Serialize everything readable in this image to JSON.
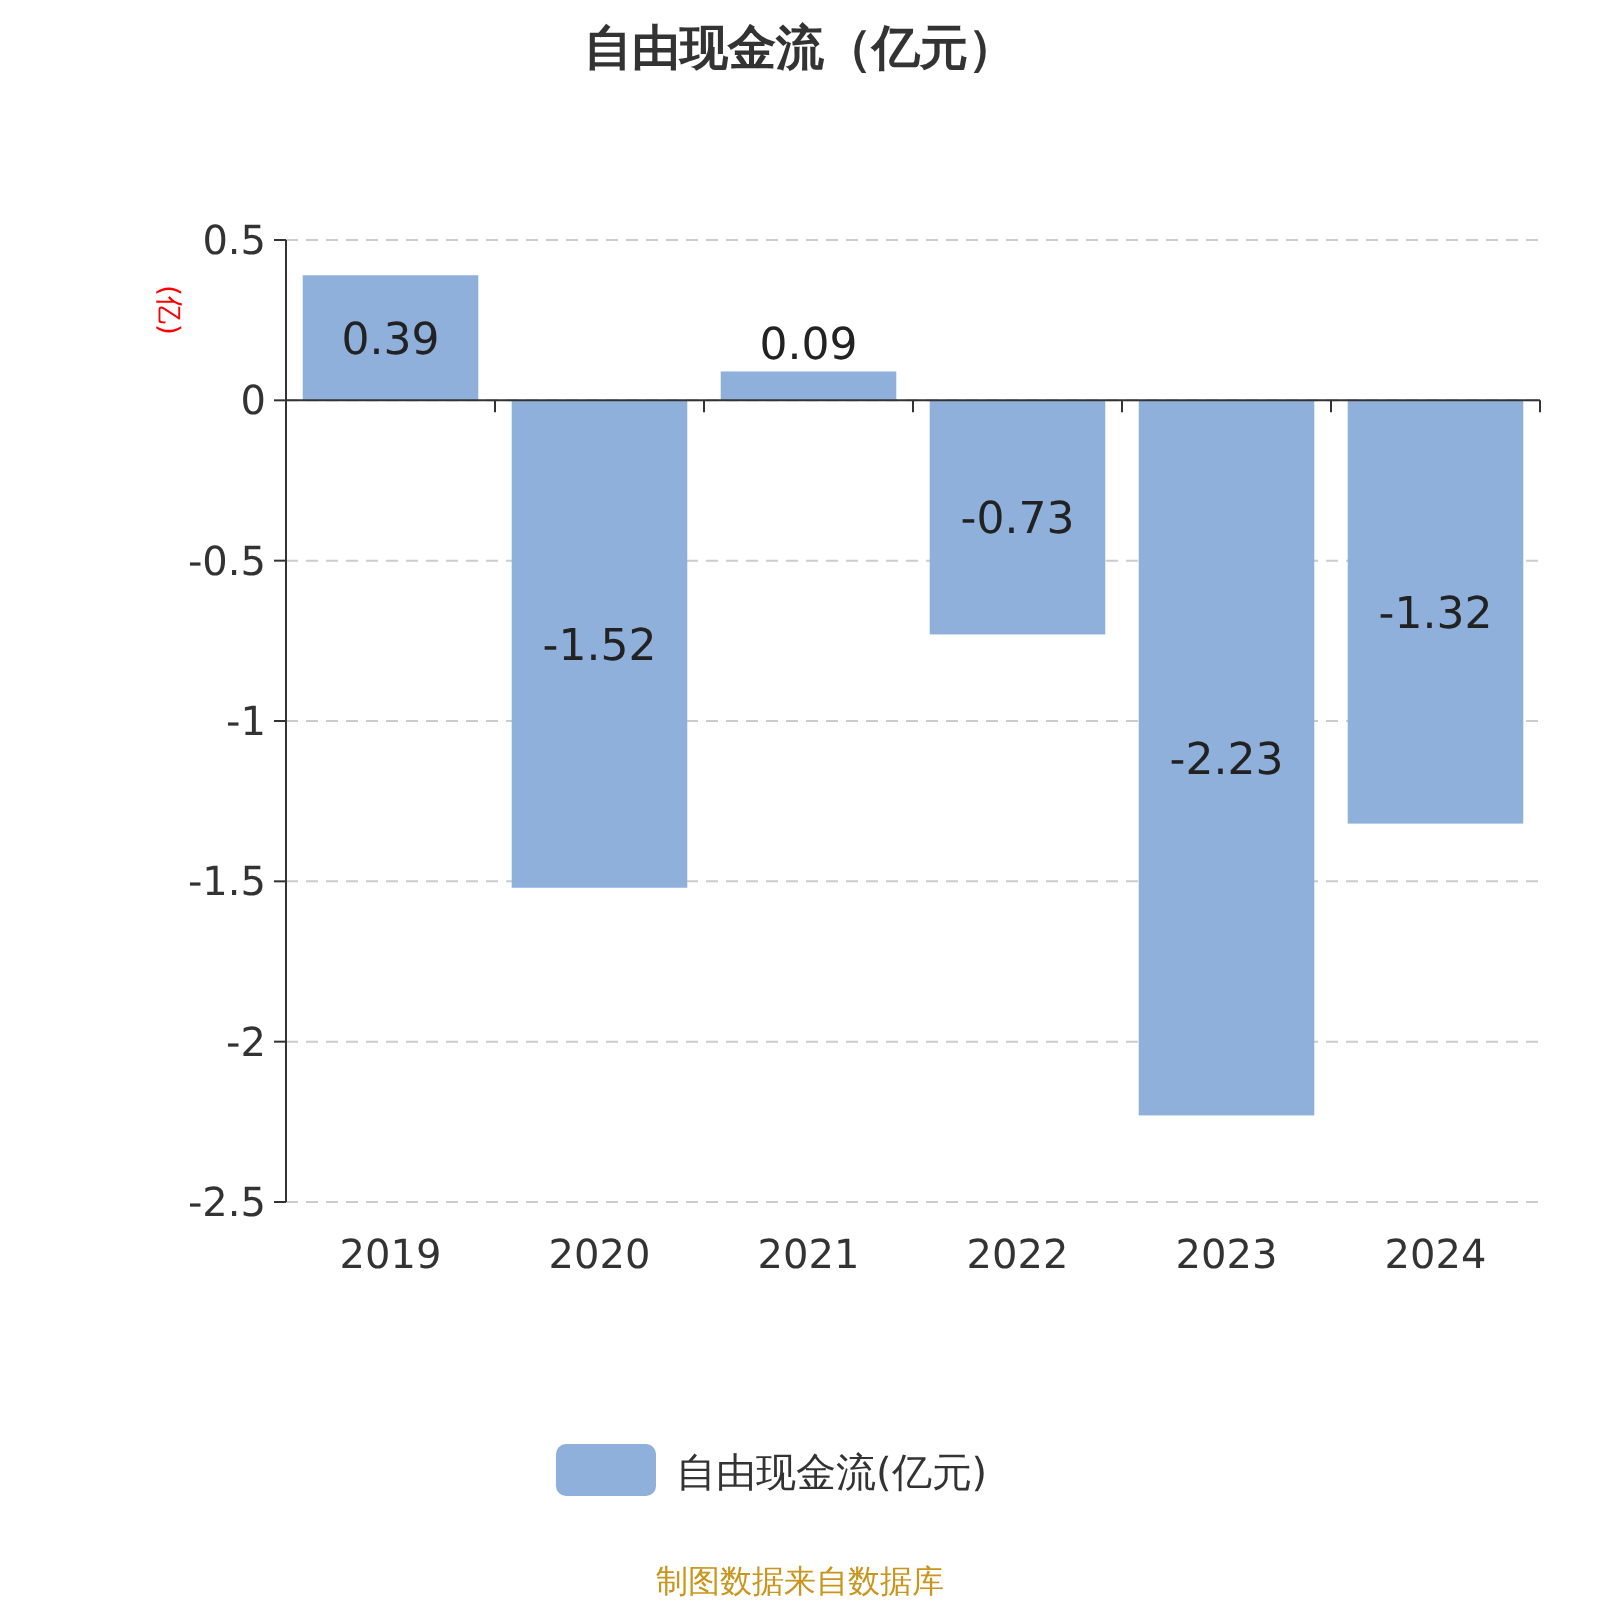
{
  "chart_data": {
    "type": "bar",
    "title": "自由现金流（亿元）",
    "ylabel": "(亿)",
    "categories": [
      "2019",
      "2020",
      "2021",
      "2022",
      "2023",
      "2024"
    ],
    "series": [
      {
        "name": "自由现金流(亿元)",
        "color": "#8eb0db",
        "values": [
          0.39,
          -1.52,
          0.09,
          -0.73,
          -2.23,
          -1.32
        ]
      }
    ],
    "ylim": [
      -2.5,
      0.5
    ],
    "yticks": [
      0.5,
      0,
      -0.5,
      -1,
      -1.5,
      -2,
      -2.5
    ],
    "grid": "y",
    "legend": "bottom",
    "data_labels": true,
    "annotations": [
      "制图数据来自数据库"
    ]
  }
}
